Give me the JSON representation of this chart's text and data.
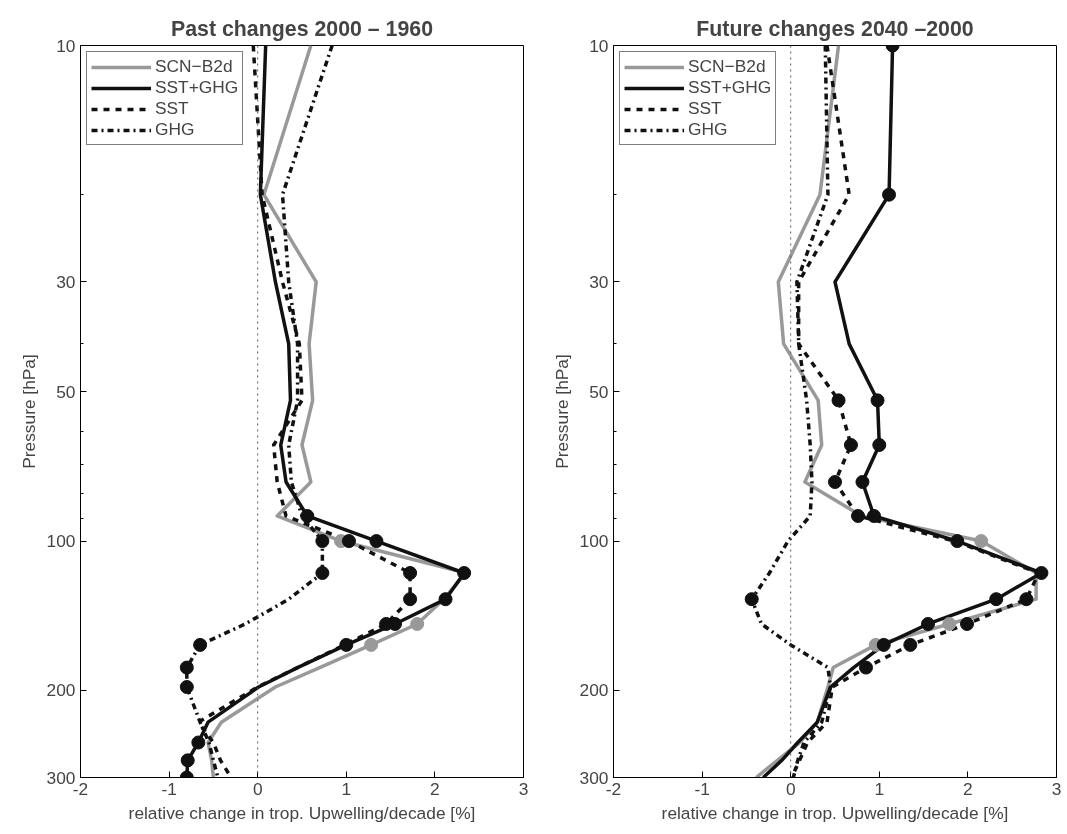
{
  "chart_data": [
    {
      "type": "line",
      "title": "Past changes 2000 – 1960",
      "xlabel": "relative change in trop. Upwelling/decade [%]",
      "ylabel": "Pressure [hPa]",
      "log": "y",
      "grid": false,
      "legend": "top left",
      "xlim": [
        -2,
        3
      ],
      "xticks": [
        -2,
        -1,
        0,
        1,
        2,
        3
      ],
      "ylim": [
        300,
        10
      ],
      "yticks": [
        10,
        {
          "value": 20,
          "label": null
        },
        30,
        {
          "value": 40,
          "label": null
        },
        50,
        {
          "value": 60,
          "label": null
        },
        {
          "value": 70,
          "label": null
        },
        {
          "value": 80,
          "label": null
        },
        {
          "value": 90,
          "label": null
        },
        100,
        200,
        300
      ],
      "ref_lines": [
        {
          "axis": "x",
          "value": 0,
          "color": "#555555",
          "line_style": "dotted"
        }
      ],
      "series": [
        {
          "name": "SCN−B2d",
          "color": "#999999",
          "line_style": "solid",
          "x": [
            0.6,
            0.07,
            0.66,
            0.58,
            0.62,
            0.5,
            0.6,
            0.22,
            0.94,
            2.35,
            2.1,
            1.8,
            1.28,
            0.7,
            0.2,
            -0.41,
            -0.56,
            -0.52,
            -0.5
          ],
          "values": [
            10,
            20,
            30,
            40,
            52,
            64,
            76,
            89,
            100,
            116,
            131,
            147,
            162,
            180,
            197,
            232,
            255,
            277,
            300
          ]
        },
        {
          "name": "SST+GHG",
          "color": "#111111",
          "line_style": "solid",
          "x": [
            0.09,
            0.03,
            0.2,
            0.35,
            0.37,
            0.26,
            0.32,
            0.56,
            1.34,
            2.33,
            2.12,
            1.55,
            1.0,
            0.45,
            0.01,
            -0.56,
            -0.67,
            -0.79,
            -0.8
          ],
          "values": [
            10,
            20,
            30,
            40,
            52,
            64,
            76,
            89,
            100,
            116,
            131,
            147,
            162,
            180,
            197,
            232,
            255,
            277,
            300
          ]
        },
        {
          "name": "SST",
          "color": "#111111",
          "line_style": "dashed",
          "x": [
            -0.05,
            0.05,
            0.28,
            0.47,
            0.5,
            0.18,
            0.22,
            0.32,
            1.03,
            1.72,
            1.72,
            1.45,
            0.98,
            0.45,
            0.0,
            -0.67,
            -0.5,
            -0.42,
            -0.3
          ],
          "values": [
            10,
            20,
            30,
            40,
            52,
            64,
            76,
            89,
            100,
            116,
            131,
            147,
            162,
            180,
            197,
            232,
            255,
            277,
            300
          ]
        },
        {
          "name": "GHG",
          "color": "#111111",
          "line_style": "dashdot",
          "x": [
            0.84,
            0.28,
            0.35,
            0.45,
            0.45,
            0.35,
            0.38,
            0.5,
            0.73,
            0.73,
            0.35,
            -0.14,
            -0.65,
            -0.8,
            -0.8,
            -0.65,
            -0.55,
            -0.5,
            -0.45
          ],
          "values": [
            10,
            20,
            30,
            40,
            52,
            64,
            76,
            89,
            100,
            116,
            131,
            147,
            162,
            180,
            197,
            232,
            255,
            277,
            300
          ]
        },
        {
          "type": "scatter",
          "marker": "circle",
          "color": "#999999",
          "x": [
            0.94,
            1.8,
            1.28
          ],
          "values": [
            100,
            147,
            162
          ]
        },
        {
          "type": "scatter",
          "marker": "circle",
          "color": "#111111",
          "x": [
            0.56,
            1.34,
            2.33,
            2.12,
            1.55,
            1.0,
            -0.67,
            -0.79,
            -0.8
          ],
          "values": [
            89,
            100,
            116,
            131,
            147,
            162,
            255,
            277,
            300
          ]
        },
        {
          "type": "scatter",
          "marker": "circle",
          "color": "#111111",
          "x": [
            1.03,
            1.72,
            1.72,
            1.45
          ],
          "values": [
            100,
            116,
            131,
            147
          ]
        },
        {
          "type": "scatter",
          "marker": "circle",
          "color": "#111111",
          "x": [
            0.73,
            0.73,
            -0.65,
            -0.8,
            -0.8
          ],
          "values": [
            100,
            116,
            162,
            180,
            197
          ]
        }
      ]
    },
    {
      "type": "line",
      "title": "Future changes 2040 –2000",
      "xlabel": "relative change in trop. Upwelling/decade [%]",
      "ylabel": "Pressure [hPa]",
      "log": "y",
      "grid": false,
      "legend": "top left",
      "xlim": [
        -2,
        3
      ],
      "xticks": [
        -2,
        -1,
        0,
        1,
        2,
        3
      ],
      "ylim": [
        300,
        10
      ],
      "yticks": [
        10,
        {
          "value": 20,
          "label": null
        },
        30,
        {
          "value": 40,
          "label": null
        },
        50,
        {
          "value": 60,
          "label": null
        },
        {
          "value": 70,
          "label": null
        },
        {
          "value": 80,
          "label": null
        },
        {
          "value": 90,
          "label": null
        },
        100,
        200,
        300
      ],
      "ref_lines": [
        {
          "axis": "x",
          "value": 0,
          "color": "#555555",
          "line_style": "dotted"
        }
      ],
      "series": [
        {
          "name": "SCN−B2d",
          "color": "#999999",
          "line_style": "solid",
          "x": [
            0.54,
            0.33,
            -0.14,
            -0.08,
            0.31,
            0.35,
            0.16,
            0.8,
            2.15,
            2.77,
            2.77,
            1.79,
            0.96,
            0.48,
            0.42,
            0.3,
            0.1,
            -0.15,
            -0.39
          ],
          "values": [
            10,
            20,
            30,
            40,
            52,
            64,
            76,
            89,
            100,
            116,
            131,
            147,
            162,
            180,
            197,
            232,
            255,
            277,
            300
          ]
        },
        {
          "name": "SST+GHG",
          "color": "#111111",
          "line_style": "solid",
          "x": [
            1.15,
            1.11,
            0.5,
            0.66,
            0.98,
            1.0,
            0.81,
            0.94,
            1.88,
            2.83,
            2.32,
            1.55,
            1.05,
            0.71,
            0.45,
            0.3,
            0.08,
            -0.1,
            -0.31
          ],
          "values": [
            10,
            20,
            30,
            40,
            52,
            64,
            76,
            89,
            100,
            116,
            131,
            147,
            162,
            180,
            197,
            232,
            255,
            277,
            300
          ]
        },
        {
          "name": "SST",
          "color": "#111111",
          "line_style": "dashed",
          "x": [
            0.41,
            0.66,
            0.09,
            0.09,
            0.54,
            0.68,
            0.5,
            0.76,
            1.85,
            2.8,
            2.66,
            1.99,
            1.35,
            0.85,
            0.47,
            0.41,
            0.19,
            0.1,
            0.01
          ],
          "values": [
            10,
            20,
            30,
            40,
            52,
            64,
            76,
            89,
            100,
            116,
            131,
            147,
            162,
            180,
            197,
            232,
            255,
            277,
            300
          ]
        },
        {
          "name": "GHG",
          "color": "#111111",
          "line_style": "dashdot",
          "x": [
            0.39,
            0.42,
            0.07,
            0.09,
            0.18,
            0.22,
            0.24,
            0.22,
            -0.03,
            -0.24,
            -0.44,
            -0.33,
            0.0,
            0.42,
            0.45,
            0.35,
            0.15,
            0.08,
            0.03
          ],
          "values": [
            10,
            20,
            30,
            40,
            52,
            64,
            76,
            89,
            100,
            116,
            131,
            147,
            162,
            180,
            197,
            232,
            255,
            277,
            300
          ]
        },
        {
          "type": "scatter",
          "marker": "circle",
          "color": "#999999",
          "x": [
            2.15,
            1.79,
            0.96
          ],
          "values": [
            100,
            147,
            162
          ]
        },
        {
          "type": "scatter",
          "marker": "circle",
          "color": "#111111",
          "x": [
            1.15,
            1.11,
            0.98,
            1.0,
            0.81,
            0.94,
            1.88,
            2.83,
            2.32,
            1.55,
            1.05
          ],
          "values": [
            10,
            20,
            52,
            64,
            76,
            89,
            100,
            116,
            131,
            147,
            162
          ]
        },
        {
          "type": "scatter",
          "marker": "circle",
          "color": "#111111",
          "x": [
            0.54,
            0.68,
            0.5,
            0.76,
            2.66,
            1.99,
            1.35,
            0.85
          ],
          "values": [
            52,
            64,
            76,
            89,
            131,
            147,
            162,
            180
          ]
        },
        {
          "type": "scatter",
          "marker": "circle",
          "color": "#111111",
          "x": [
            -0.44
          ],
          "values": [
            131
          ]
        }
      ]
    }
  ]
}
